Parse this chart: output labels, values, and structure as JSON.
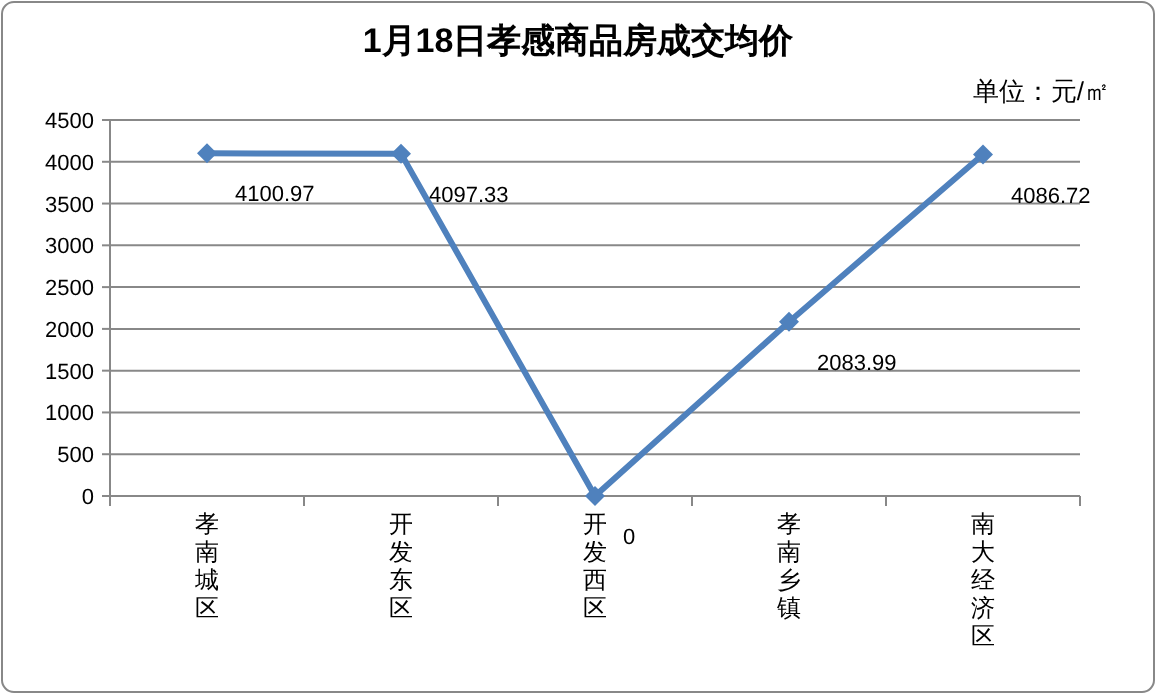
{
  "chart_data": {
    "type": "line",
    "title": "1月18日孝感商品房成交均价",
    "annotations": [
      "单位：元/㎡"
    ],
    "categories": [
      "孝南城区",
      "开发东区",
      "开发西区",
      "孝南乡镇",
      "南大经济区"
    ],
    "series": [
      {
        "color": "#4f81bd",
        "values": [
          4100.97,
          4097.33,
          0,
          2083.99,
          4086.72
        ]
      }
    ],
    "ylim": [
      0,
      4500
    ],
    "yticks": [
      0,
      500,
      1000,
      1500,
      2000,
      2500,
      3000,
      3500,
      4000,
      4500
    ],
    "grid": "y",
    "marker": "diamond",
    "line_style": "solid",
    "data_labels": true
  }
}
